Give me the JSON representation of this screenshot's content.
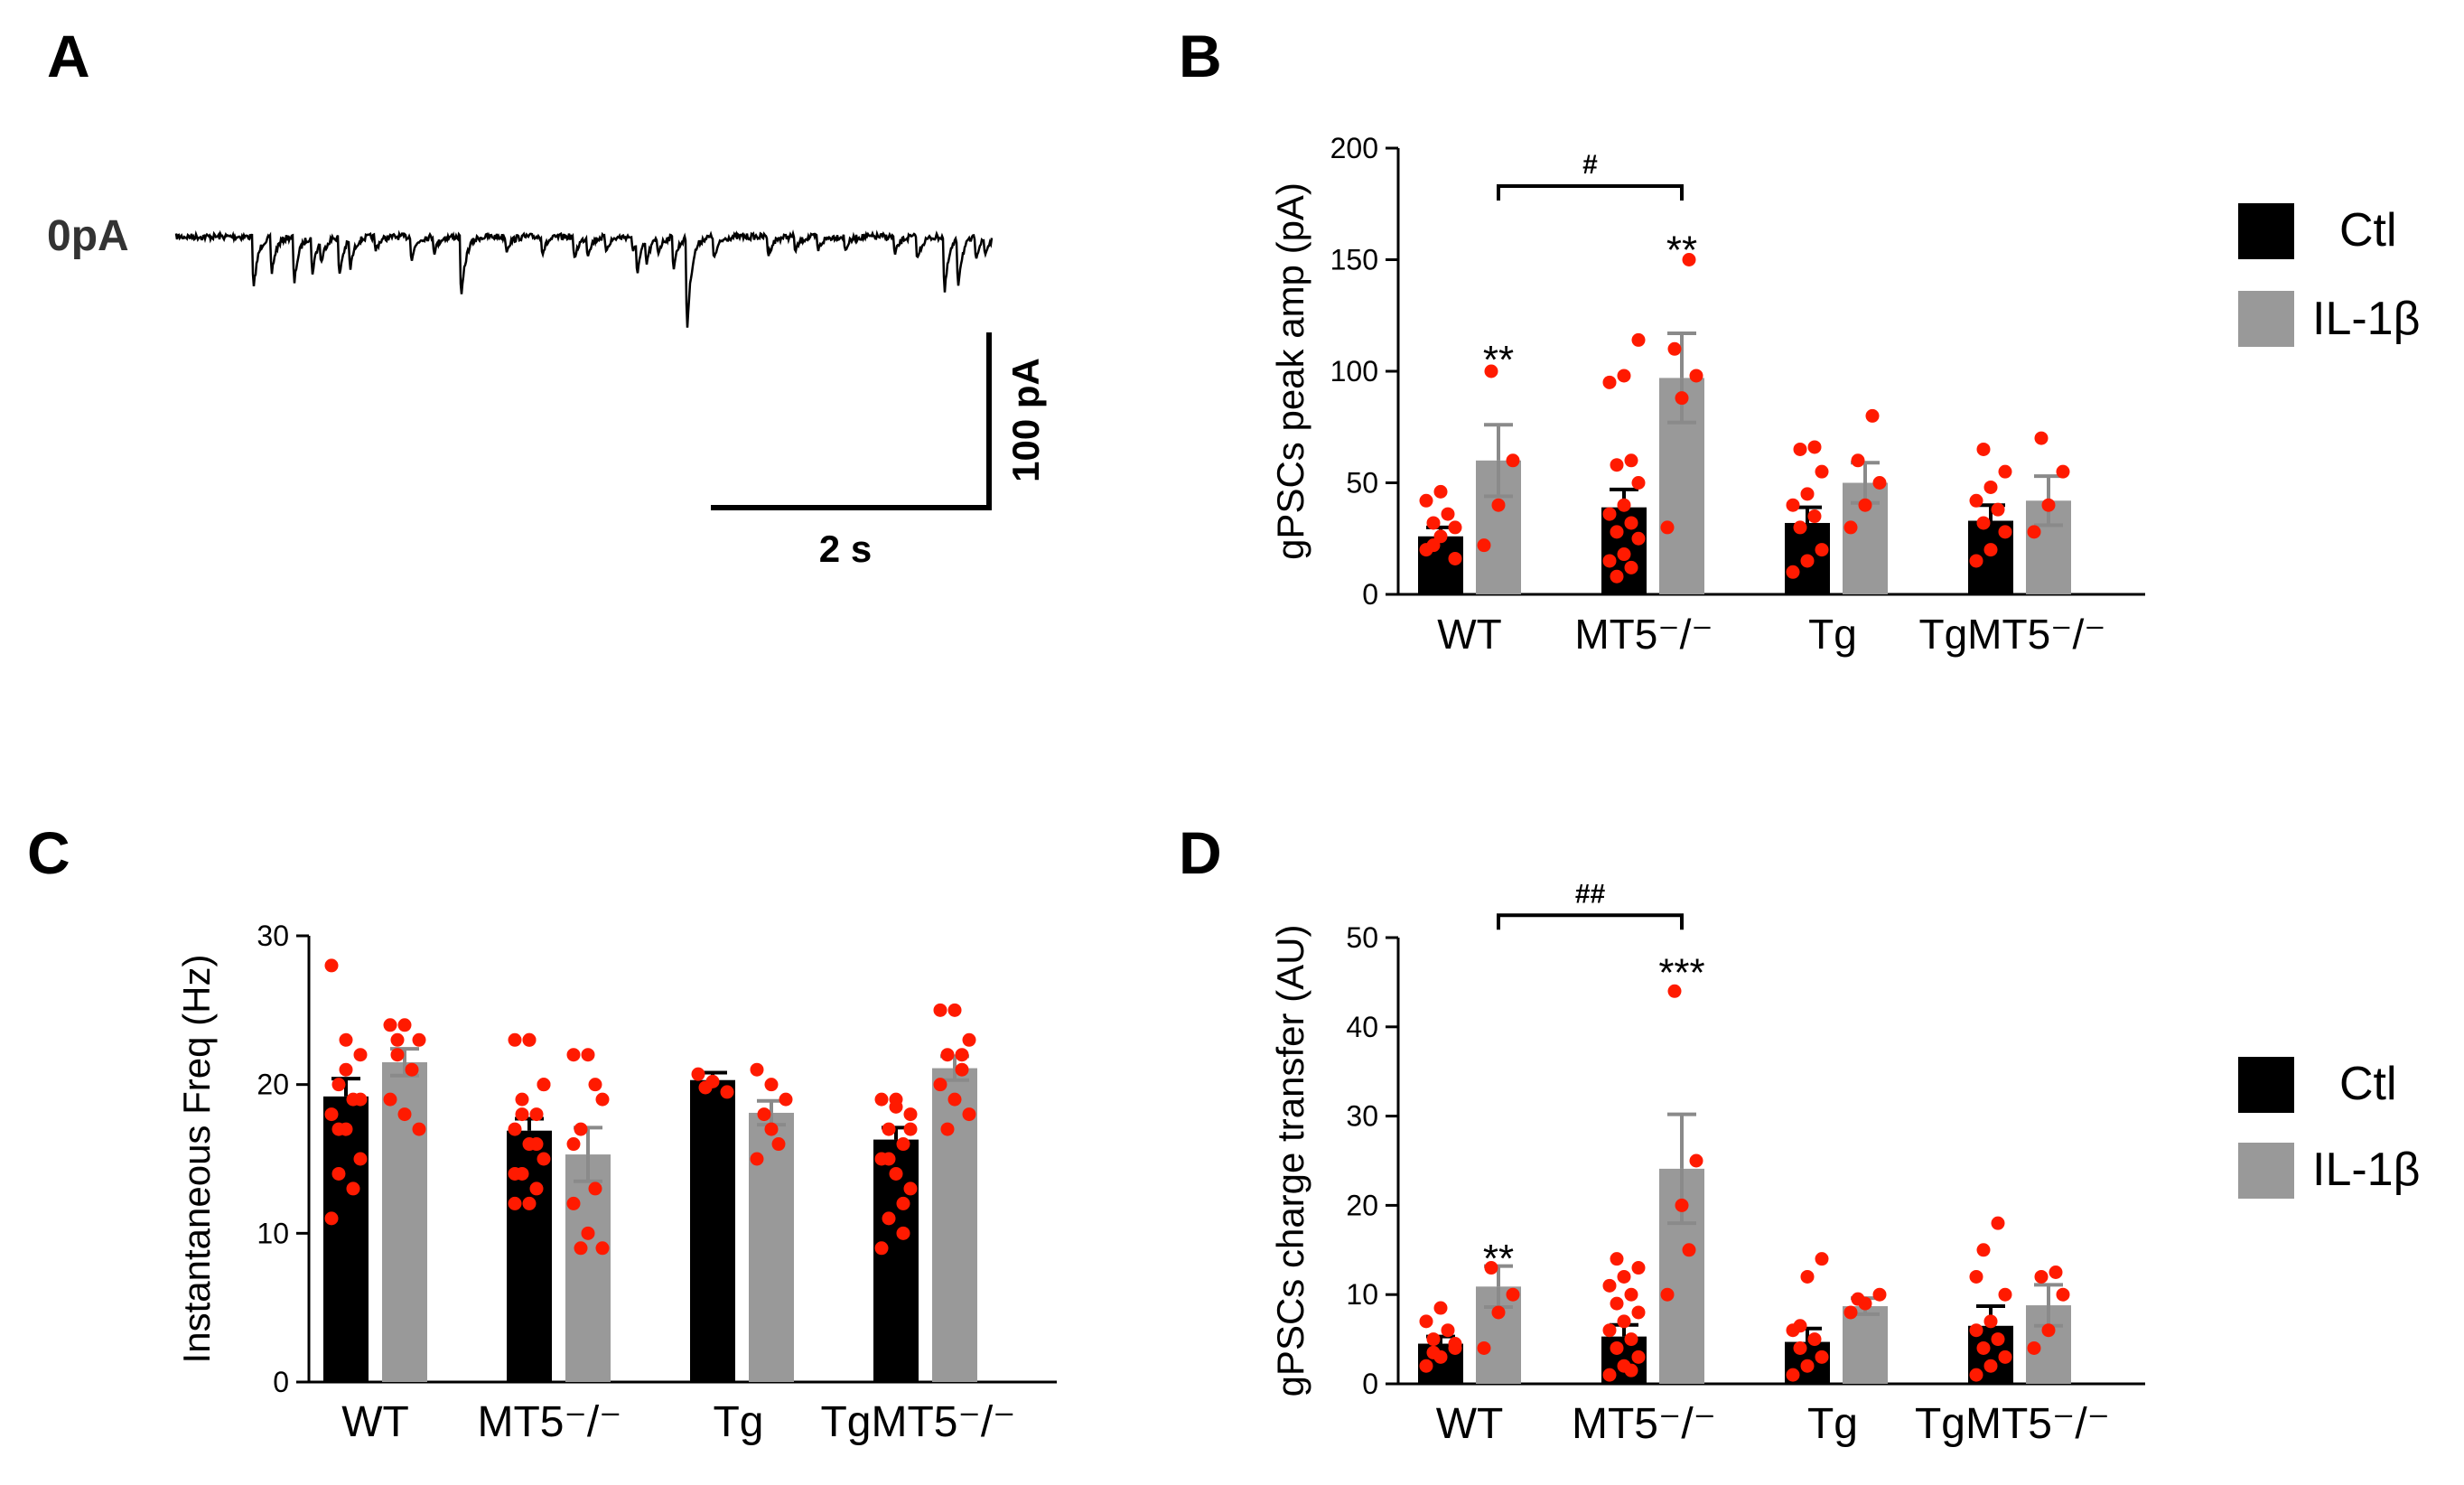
{
  "colors": {
    "ctl": "#000000",
    "il1b": "#999999",
    "il1b_err": "#8a8a8a",
    "points": "#ff1a00",
    "axis": "#000000"
  },
  "panel_a": {
    "label": "A",
    "baseline_label": "0pA",
    "scale_y_label": "100 pA",
    "scale_x_label": "2 s"
  },
  "legend": {
    "ctl": "Ctl",
    "il1b": "IL-1β"
  },
  "chart_data": [
    {
      "panel": "B",
      "type": "bar",
      "categories": [
        "WT",
        "MT5⁻/⁻",
        "Tg",
        "TgMT5⁻/⁻"
      ],
      "ylabel": "gPSCs peak amp (pA)",
      "ylim": [
        0,
        200
      ],
      "yticks": [
        0,
        50,
        100,
        150,
        200
      ],
      "series": [
        {
          "name": "Ctl",
          "values": [
            26,
            39,
            32,
            33
          ],
          "errors": [
            4,
            8,
            7,
            7
          ],
          "points": [
            [
              20,
              26,
              30,
              32,
              36,
              42,
              46,
              16,
              22
            ],
            [
              15,
              18,
              25,
              28,
              32,
              36,
              40,
              50,
              58,
              60,
              95,
              98,
              114,
              8,
              12
            ],
            [
              10,
              15,
              20,
              30,
              35,
              40,
              45,
              55,
              65,
              66
            ],
            [
              15,
              20,
              28,
              32,
              38,
              42,
              48,
              55,
              65
            ]
          ]
        },
        {
          "name": "IL-1β",
          "values": [
            60,
            97,
            50,
            42
          ],
          "errors": [
            16,
            20,
            9,
            11
          ],
          "points": [
            [
              22,
              40,
              60,
              100
            ],
            [
              30,
              88,
              98,
              110,
              150
            ],
            [
              30,
              40,
              50,
              60,
              80
            ],
            [
              28,
              40,
              55,
              70
            ]
          ]
        }
      ],
      "annotations": [
        {
          "text": "**",
          "category": 0,
          "series": 1,
          "y": 109
        },
        {
          "text": "**",
          "category": 1,
          "series": 1,
          "y": 158
        },
        {
          "text": "#",
          "from": 0,
          "to": 1,
          "y": 183
        }
      ]
    },
    {
      "panel": "C",
      "type": "bar",
      "categories": [
        "WT",
        "MT5⁻/⁻",
        "Tg",
        "TgMT5⁻/⁻"
      ],
      "ylabel": "Instantaneous Freq (Hz)",
      "ylim": [
        0,
        30
      ],
      "yticks": [
        0,
        10,
        20,
        30
      ],
      "series": [
        {
          "name": "Ctl",
          "values": [
            19.2,
            16.9,
            20.3,
            16.3
          ],
          "errors": [
            1.2,
            0.8,
            0.5,
            0.8
          ],
          "points": [
            [
              28,
              23,
              22,
              20,
              19,
              18,
              17,
              15,
              14,
              13,
              11,
              21,
              19,
              17
            ],
            [
              23,
              23,
              20,
              19,
              18,
              17,
              16,
              15,
              14,
              13,
              12,
              23,
              20,
              18,
              16,
              14,
              12
            ],
            [
              20.7,
              20.2,
              19.5,
              19.8
            ],
            [
              19,
              19,
              18,
              17,
              16,
              15,
              14,
              13,
              11,
              10,
              9,
              18.5,
              17,
              15,
              12
            ]
          ]
        },
        {
          "name": "IL-1β",
          "values": [
            21.5,
            15.3,
            18.1,
            21.1
          ],
          "errors": [
            0.9,
            1.8,
            0.8,
            0.8
          ],
          "points": [
            [
              24,
              24,
              23,
              22,
              21,
              19,
              18,
              17,
              23
            ],
            [
              22,
              22,
              19,
              17,
              13,
              12,
              10,
              9,
              9,
              20,
              16
            ],
            [
              21,
              20,
              19,
              18,
              16,
              15,
              17
            ],
            [
              25,
              25,
              23,
              22,
              21,
              20,
              19,
              18,
              17,
              22
            ]
          ]
        }
      ],
      "annotations": []
    },
    {
      "panel": "D",
      "type": "bar",
      "categories": [
        "WT",
        "MT5⁻/⁻",
        "Tg",
        "TgMT5⁻/⁻"
      ],
      "ylabel": "gPSCs charge transfer (AU)",
      "ylim": [
        0,
        50
      ],
      "yticks": [
        0,
        10,
        20,
        30,
        40,
        50
      ],
      "series": [
        {
          "name": "Ctl",
          "values": [
            4.5,
            5.3,
            4.7,
            6.5
          ],
          "errors": [
            0.8,
            1.3,
            1.5,
            2.2
          ],
          "points": [
            [
              2,
              3,
              4,
              5,
              6,
              7,
              8.5,
              4.5,
              3.5
            ],
            [
              1,
              2,
              3,
              4,
              5,
              6,
              7,
              8,
              9,
              10,
              11,
              12,
              13,
              14,
              1.5
            ],
            [
              1,
              2,
              3,
              4,
              5,
              6,
              12,
              14,
              6.5
            ],
            [
              1,
              2,
              3,
              4,
              5,
              6,
              7,
              10,
              15,
              18,
              12
            ]
          ]
        },
        {
          "name": "IL-1β",
          "values": [
            10.9,
            24.1,
            8.7,
            8.8
          ],
          "errors": [
            2.3,
            6.1,
            0.9,
            2.3
          ],
          "points": [
            [
              4,
              8,
              10,
              13
            ],
            [
              10,
              20,
              25,
              44,
              15
            ],
            [
              8,
              9,
              10,
              9.5
            ],
            [
              4,
              6,
              10,
              12,
              12.5
            ]
          ]
        }
      ],
      "annotations": [
        {
          "text": "**",
          "category": 0,
          "series": 1,
          "y": 15
        },
        {
          "text": "***",
          "category": 1,
          "series": 1,
          "y": 47
        },
        {
          "text": "##",
          "from": 0,
          "to": 1,
          "y": 52.5
        }
      ]
    }
  ]
}
